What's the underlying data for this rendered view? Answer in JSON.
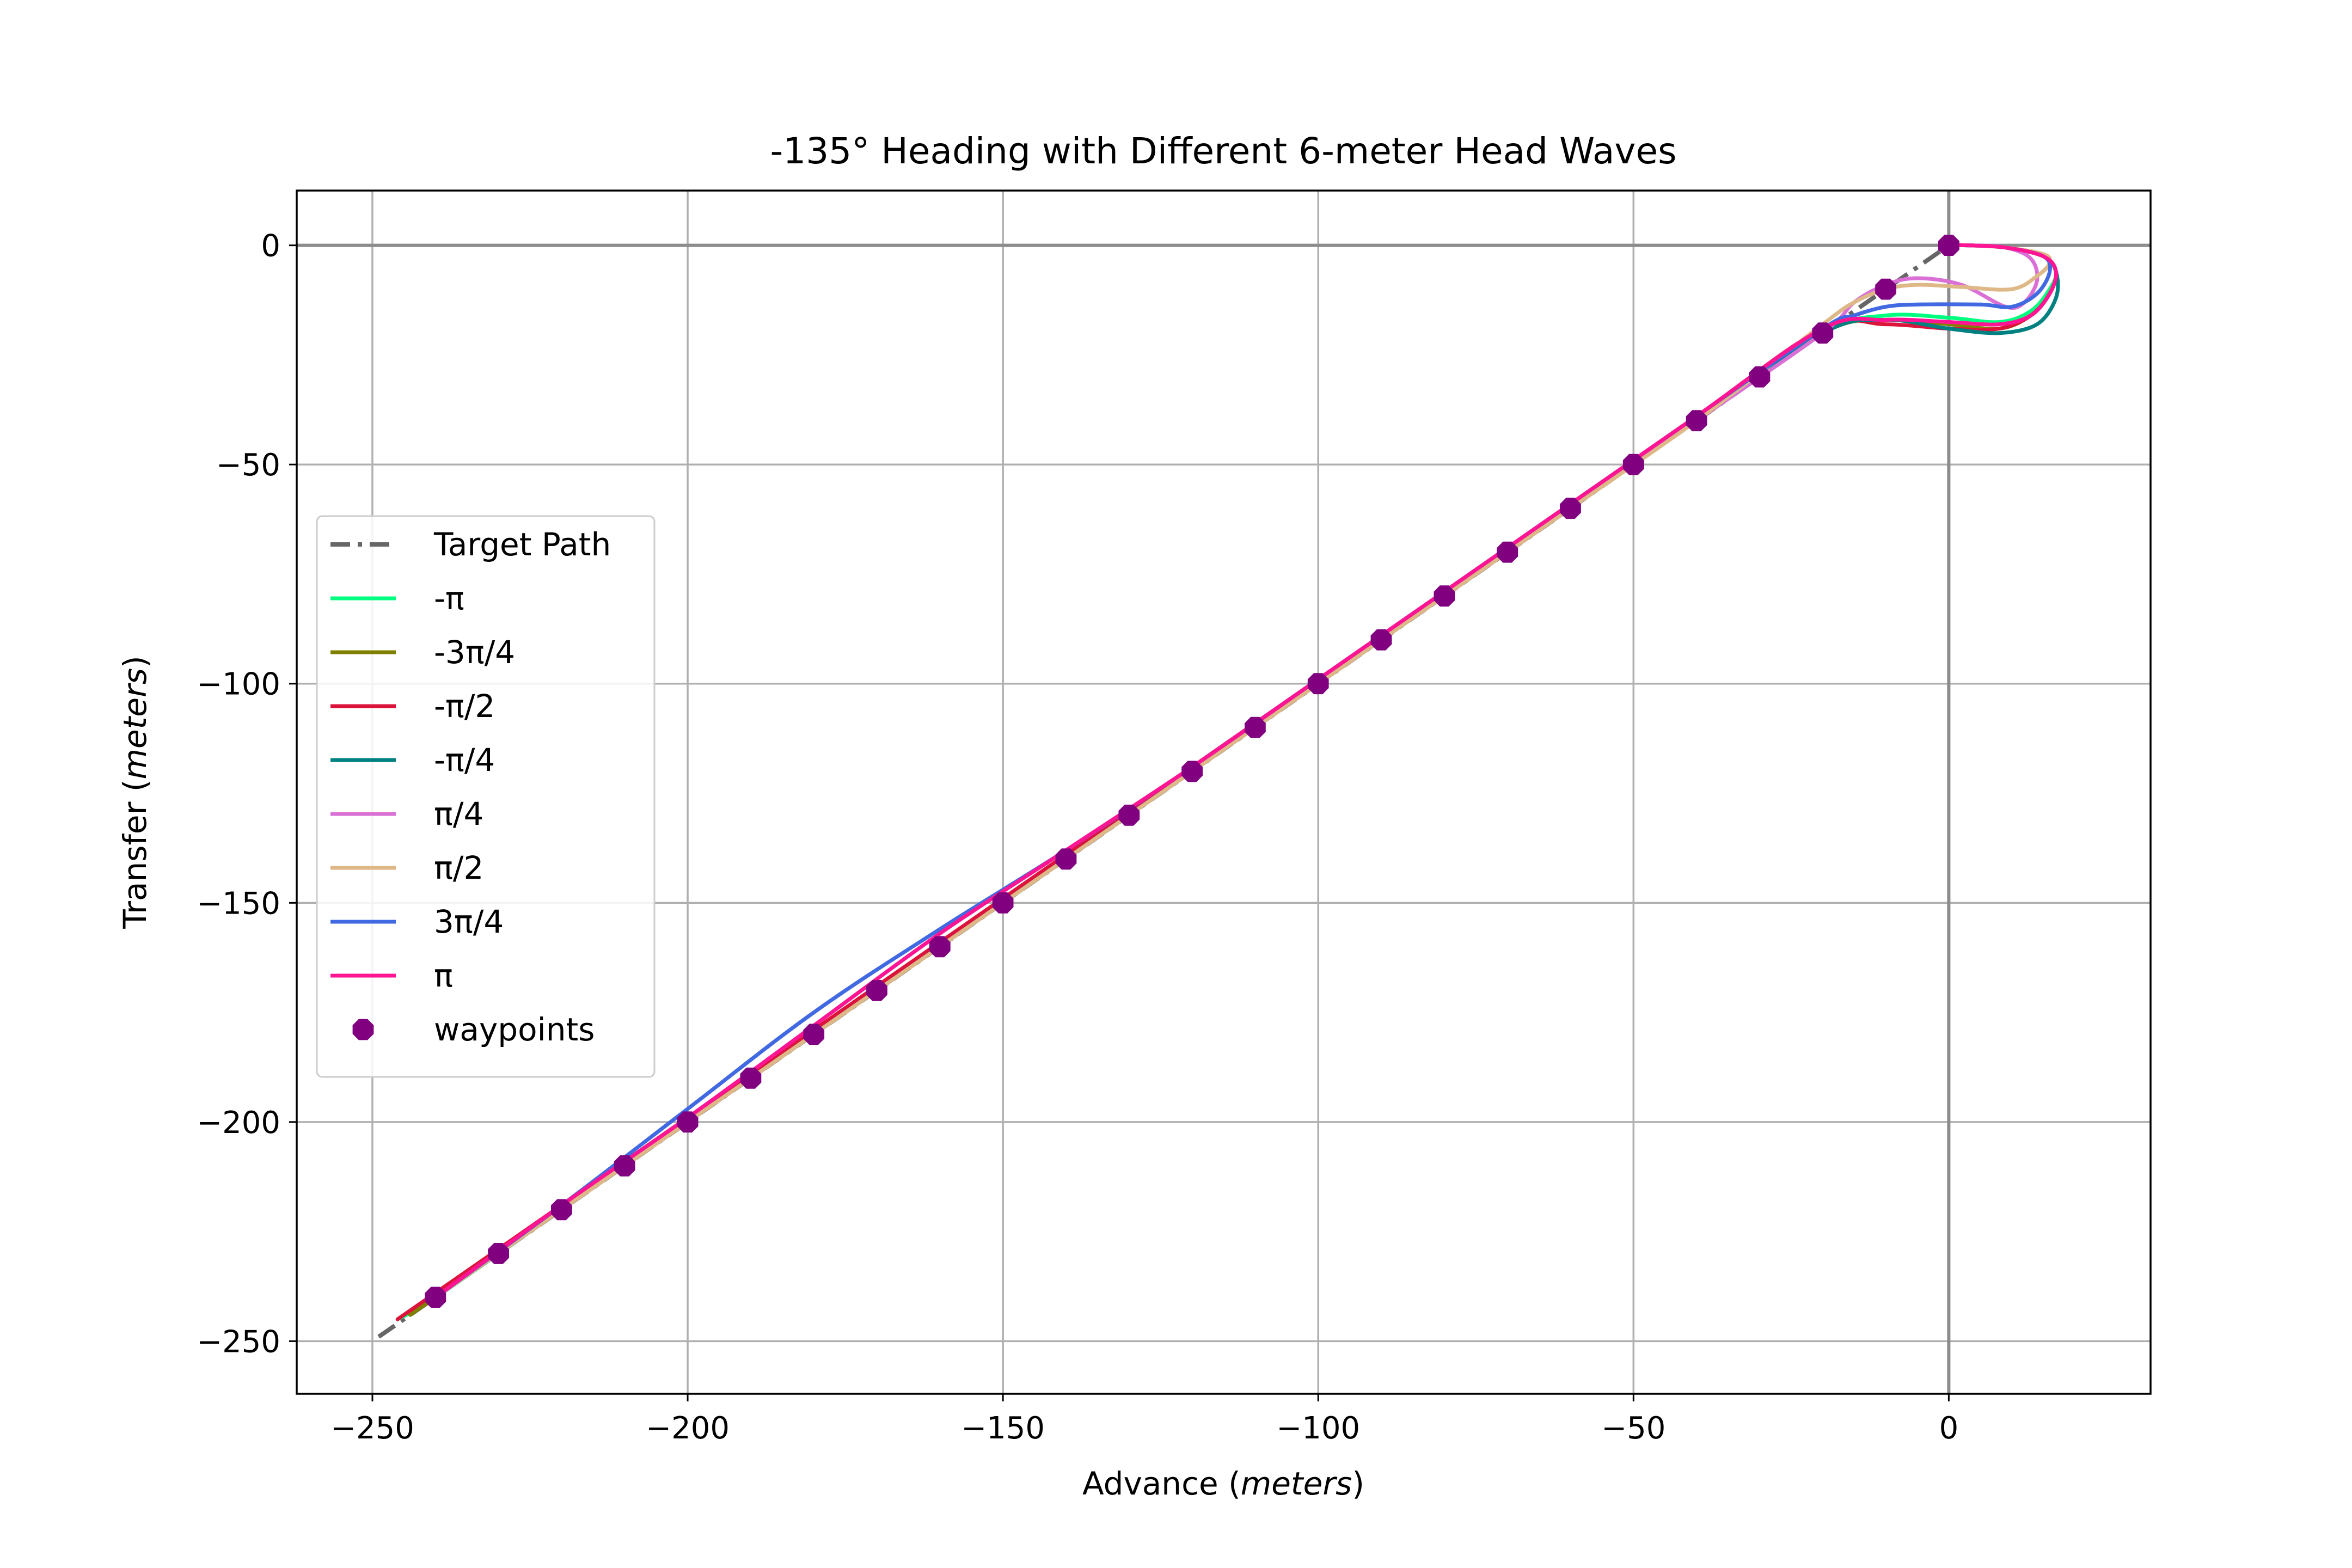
{
  "chart_data": {
    "type": "line",
    "title": "-135° Heading with Different 6-meter Head Waves",
    "xlabel": "Advance",
    "xlabel_unit": "meters",
    "ylabel": "Transfer",
    "ylabel_unit": "meters",
    "xlim": [
      -262,
      32
    ],
    "ylim": [
      -262,
      12.5
    ],
    "xticks": [
      -250,
      -200,
      -150,
      -100,
      -50,
      0
    ],
    "yticks": [
      0,
      -50,
      -100,
      -150,
      -200,
      -250
    ],
    "xtick_labels": [
      "−250",
      "−200",
      "−150",
      "−100",
      "−50",
      "0"
    ],
    "ytick_labels": [
      "0",
      "−50",
      "−100",
      "−150",
      "−200",
      "−250"
    ],
    "grid": true,
    "legend_position": "center-left",
    "target_path": {
      "name": "Target Path",
      "color": "#666666",
      "x": [
        -249,
        0
      ],
      "y": [
        -249,
        0
      ]
    },
    "series": [
      {
        "name": "-π",
        "color": "#00ff7f",
        "x": [
          -246,
          -240,
          -220,
          -200,
          -180,
          -160,
          -140,
          -120,
          -100,
          -80,
          -60,
          -40,
          -20,
          -10,
          0,
          8,
          13,
          16,
          17,
          15,
          9,
          3,
          0
        ],
        "y": [
          -245,
          -240,
          -220,
          -200,
          -180,
          -160,
          -140,
          -120,
          -100,
          -80,
          -60,
          -40,
          -20,
          -16,
          -16.5,
          -17.5,
          -15,
          -10,
          -6,
          -2.5,
          -0.5,
          0,
          0
        ]
      },
      {
        "name": "-3π/4",
        "color": "#808000",
        "x": [
          -244,
          -240,
          -220,
          -200,
          -180,
          -160,
          -140,
          -120,
          -100,
          -80,
          -60,
          -40,
          -20,
          -10,
          0,
          8,
          13,
          16,
          17,
          15,
          9,
          3,
          0
        ],
        "y": [
          -244,
          -240,
          -220,
          -200,
          -180,
          -160,
          -140,
          -120,
          -100,
          -80,
          -60,
          -40,
          -20,
          -17,
          -18,
          -19,
          -16,
          -11,
          -6,
          -2.5,
          -0.5,
          0,
          0
        ]
      },
      {
        "name": "-π/2",
        "color": "#dc143c",
        "x": [
          -246,
          -240,
          -220,
          -200,
          -180,
          -160,
          -140,
          -120,
          -100,
          -80,
          -60,
          -40,
          -20,
          -10,
          0,
          8,
          13,
          16,
          17,
          15,
          9,
          3,
          0
        ],
        "y": [
          -245,
          -239,
          -219,
          -199,
          -179,
          -159,
          -139,
          -119,
          -99,
          -79,
          -59,
          -39,
          -19,
          -18,
          -19,
          -19,
          -16,
          -11,
          -6,
          -2.5,
          -0.5,
          0,
          0
        ]
      },
      {
        "name": "-π/4",
        "color": "#008080",
        "x": [
          -240,
          -230,
          -220,
          -200,
          -180,
          -160,
          -140,
          -120,
          -100,
          -80,
          -60,
          -40,
          -20,
          -10,
          0,
          8,
          14,
          17,
          17,
          15,
          9,
          3,
          0
        ],
        "y": [
          -240,
          -230,
          -220,
          -200,
          -180,
          -160,
          -140,
          -120,
          -100,
          -80,
          -60,
          -40,
          -20,
          -17,
          -19,
          -20,
          -18,
          -12,
          -6,
          -2.5,
          -0.5,
          0,
          0
        ]
      },
      {
        "name": "π/4",
        "color": "#da70d6",
        "x": [
          -240,
          -220,
          -200,
          -180,
          -160,
          -140,
          -120,
          -100,
          -80,
          -60,
          -40,
          -20,
          -15,
          -10,
          -5,
          2,
          9,
          12,
          14,
          13,
          9,
          3,
          0
        ],
        "y": [
          -240,
          -220,
          -200,
          -180,
          -160,
          -140,
          -120,
          -100,
          -80,
          -60,
          -40,
          -20,
          -13,
          -9,
          -7.5,
          -9,
          -14,
          -13,
          -8,
          -3,
          -0.5,
          0,
          0
        ]
      },
      {
        "name": "π/2",
        "color": "#deb887",
        "x": [
          -240,
          -220,
          -200,
          -180,
          -160,
          -140,
          -120,
          -100,
          -80,
          -60,
          -40,
          -20,
          -15,
          -10,
          -5,
          2,
          10,
          14,
          16,
          15,
          9,
          3,
          0
        ],
        "y": [
          -240,
          -220,
          -200,
          -180,
          -160,
          -140,
          -120,
          -100,
          -80,
          -60,
          -40,
          -18,
          -13,
          -10,
          -9,
          -9.5,
          -10,
          -7,
          -4,
          -2,
          -0.5,
          0,
          0
        ]
      },
      {
        "name": "3π/4",
        "color": "#4169e1",
        "x": [
          -240,
          -220,
          -200,
          -180,
          -160,
          -140,
          -120,
          -100,
          -80,
          -60,
          -40,
          -20,
          -15,
          -10,
          -5,
          5,
          10,
          14,
          16,
          15,
          9,
          3,
          0
        ],
        "y": [
          -240,
          -219,
          -197,
          -175,
          -156,
          -138,
          -119,
          -99,
          -79,
          -59,
          -39,
          -19,
          -16,
          -14,
          -13.5,
          -13.5,
          -14,
          -11,
          -6,
          -2.5,
          -0.5,
          0,
          0
        ]
      },
      {
        "name": "π",
        "color": "#ff1493",
        "x": [
          -240,
          -220,
          -200,
          -180,
          -160,
          -140,
          -120,
          -100,
          -80,
          -60,
          -40,
          -20,
          -10,
          0,
          8,
          13,
          16,
          17,
          15,
          9,
          3,
          0
        ],
        "y": [
          -240,
          -219,
          -199,
          -178,
          -157,
          -138,
          -119,
          -99,
          -79,
          -59,
          -39,
          -19,
          -17,
          -17.5,
          -18,
          -16,
          -11,
          -6,
          -2.5,
          -0.5,
          0,
          0
        ]
      }
    ],
    "waypoints": {
      "name": "waypoints",
      "color": "#800080",
      "x": [
        0,
        -10,
        -20,
        -30,
        -40,
        -50,
        -60,
        -70,
        -80,
        -90,
        -100,
        -110,
        -120,
        -130,
        -140,
        -150,
        -160,
        -170,
        -180,
        -190,
        -200,
        -210,
        -220,
        -230,
        -240
      ],
      "y": [
        0,
        -10,
        -20,
        -30,
        -40,
        -50,
        -60,
        -70,
        -80,
        -90,
        -100,
        -110,
        -120,
        -130,
        -140,
        -150,
        -160,
        -170,
        -180,
        -190,
        -200,
        -210,
        -220,
        -230,
        -240
      ]
    }
  }
}
